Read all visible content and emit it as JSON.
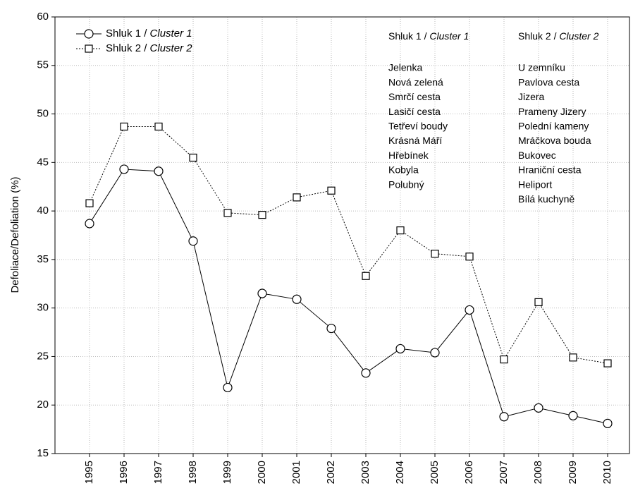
{
  "chart_data": {
    "type": "line",
    "ylabel": "Defoliace/Defoliation (%)",
    "categories": [
      "1995",
      "1996",
      "1997",
      "1998",
      "1999",
      "2000",
      "2001",
      "2002",
      "2003",
      "2004",
      "2005",
      "2006",
      "2007",
      "2008",
      "2009",
      "2010"
    ],
    "series": [
      {
        "name": "Shluk 1 / Cluster 1",
        "color": "#000000",
        "marker": "circle",
        "dash": "solid",
        "values": [
          38.7,
          44.3,
          44.1,
          36.9,
          21.8,
          31.5,
          30.9,
          27.9,
          23.3,
          25.8,
          25.4,
          29.8,
          18.8,
          19.7,
          18.9,
          18.1
        ]
      },
      {
        "name": "Shluk 2 / Cluster 2",
        "color": "#000000",
        "marker": "square",
        "dash": "dotted",
        "values": [
          40.8,
          48.7,
          48.7,
          45.5,
          39.8,
          39.6,
          41.4,
          42.1,
          33.3,
          38.0,
          35.6,
          35.3,
          24.7,
          30.6,
          24.9,
          24.3
        ]
      }
    ],
    "ylim": [
      15,
      60
    ],
    "yticks": [
      15,
      20,
      25,
      30,
      35,
      40,
      45,
      50,
      55,
      60
    ],
    "grid": true,
    "legend": "top-left",
    "annotations": [
      {
        "title": "Shluk 1 / Cluster 1",
        "items": [
          "Jelenka",
          "Nová zelená",
          "Smrčí cesta",
          "Lasičí cesta",
          "Tetřeví boudy",
          "Krásná Máří",
          "Hřebínek",
          "Kobyla",
          "Polubný"
        ]
      },
      {
        "title": "Shluk 2 / Cluster 2",
        "items": [
          "U zemníku",
          "Pavlova cesta",
          "Jizera",
          "Prameny Jizery",
          "Polední kameny",
          "Mráčkova bouda",
          "Bukovec",
          "Hraniční cesta",
          "Heliport",
          "Bílá kuchyně"
        ]
      }
    ]
  }
}
